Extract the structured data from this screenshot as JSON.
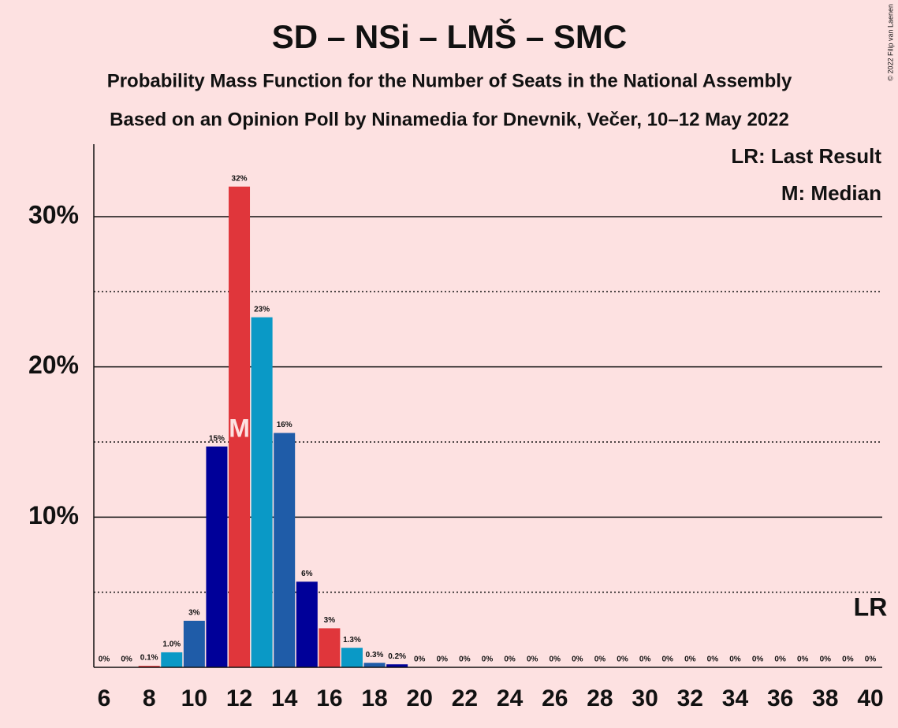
{
  "chart_data": {
    "type": "bar",
    "title": "SD – NSi – LMŠ – SMC",
    "subtitle": "Probability Mass Function for the Number of Seats in the National Assembly",
    "subtitle2": "Based on an Opinion Poll by Ninamedia for Dnevnik, Večer, 10–12 May 2022",
    "copyright": "© 2022 Filip van Laenen",
    "categories": [
      6,
      null,
      8,
      null,
      10,
      null,
      12,
      null,
      14,
      null,
      16,
      null,
      18,
      null,
      20,
      null,
      22,
      null,
      24,
      null,
      26,
      null,
      28,
      null,
      30,
      null,
      32,
      null,
      34,
      null,
      36,
      null,
      38,
      null,
      40
    ],
    "values": [
      0,
      0,
      0.1,
      1.0,
      3.1,
      14.7,
      32,
      23.3,
      15.6,
      5.7,
      2.6,
      1.3,
      0.3,
      0.2,
      0,
      0,
      0,
      0,
      0,
      0,
      0,
      0,
      0,
      0,
      0,
      0,
      0,
      0,
      0,
      0,
      0,
      0,
      0,
      0,
      0
    ],
    "value_labels": [
      "0%",
      "0%",
      "0.1%",
      "1.0%",
      "3%",
      "15%",
      "32%",
      "23%",
      "16%",
      "6%",
      "3%",
      "1.3%",
      "0.3%",
      "0.2%",
      "0%",
      "0%",
      "0%",
      "0%",
      "0%",
      "0%",
      "0%",
      "0%",
      "0%",
      "0%",
      "0%",
      "0%",
      "0%",
      "0%",
      "0%",
      "0%",
      "0%",
      "0%",
      "0%",
      "0%",
      "0%"
    ],
    "palette": [
      "#e0363b",
      "#0a99c6",
      "#1f5ca8",
      "#000099"
    ],
    "ylim": [
      0,
      35
    ],
    "yticks": [
      {
        "value": 10,
        "label": "10%"
      },
      {
        "value": 20,
        "label": "20%"
      },
      {
        "value": 30,
        "label": "30%"
      }
    ],
    "minor_yticks": [
      5,
      15,
      25
    ],
    "grid": true,
    "median": {
      "index": 6,
      "label": "M",
      "legend": "M: Median"
    },
    "last_result": {
      "index": 34,
      "label": "LR",
      "legend": "LR: Last Result"
    }
  }
}
